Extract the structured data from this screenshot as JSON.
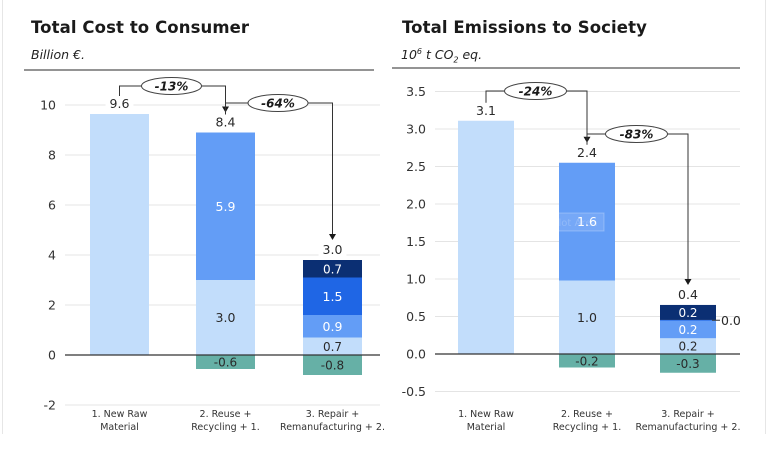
{
  "colors": {
    "raw_material": "#C2DDFB",
    "reuse_recycling": "#639DF6",
    "repair": "#1F66E5",
    "remanufacturing": "#0B2F73",
    "savings": "#66B0A6",
    "grid": "#e4e4e4",
    "axis": "#333333"
  },
  "chart_data": [
    {
      "type": "bar",
      "stacked": true,
      "waterfall_annotations": true,
      "title": "Total Cost to Consumer",
      "subtitle": "Billion €.",
      "xlabel": "",
      "ylabel": "Billion €.",
      "ylim": [
        -2,
        10
      ],
      "yticks": [
        -2,
        0,
        2,
        4,
        6,
        8,
        10
      ],
      "ytick_labels": [
        "-2",
        "0",
        "2",
        "4",
        "6",
        "8",
        "10"
      ],
      "grid": true,
      "categories": [
        "1. New Raw Material",
        "2. Reuse + Recycling + 1.",
        "3. Repair + Remanufacturing + 2."
      ],
      "category_lines": [
        [
          "1. New Raw",
          "Material"
        ],
        [
          "2. Reuse +",
          "Recycling + 1."
        ],
        [
          "3. Repair +",
          "Remanufacturing + 2."
        ]
      ],
      "segments": [
        [
          {
            "series": "raw_material",
            "value": 9.64,
            "label": ""
          }
        ],
        [
          {
            "series": "raw_material",
            "value": 3.0,
            "label": "3.0"
          },
          {
            "series": "reuse_recycling",
            "value": 5.9,
            "label": "5.9"
          },
          {
            "series": "savings",
            "value": -0.56,
            "label": "-0.6"
          }
        ],
        [
          {
            "series": "raw_material",
            "value": 0.7,
            "label": "0.7"
          },
          {
            "series": "reuse_recycling",
            "value": 0.9,
            "label": "0.9"
          },
          {
            "series": "repair",
            "value": 1.5,
            "label": "1.5"
          },
          {
            "series": "remanufacturing",
            "value": 0.7,
            "label": "0.7"
          },
          {
            "series": "savings",
            "value": -0.8,
            "label": "-0.8"
          }
        ]
      ],
      "totals": [
        {
          "value": 9.6,
          "label": "9.6"
        },
        {
          "value": 8.4,
          "label": "8.4"
        },
        {
          "value": 3.0,
          "label": "3.0"
        }
      ],
      "changes": [
        {
          "from": 0,
          "to": 1,
          "label": "-13%"
        },
        {
          "from": 1,
          "to": 2,
          "label": "-64%"
        }
      ],
      "side_labels": []
    },
    {
      "type": "bar",
      "stacked": true,
      "waterfall_annotations": true,
      "title": "Total Emissions to Society",
      "subtitle_parts": {
        "base": "10",
        "sup": "6",
        "mid": " t CO",
        "sub": "2",
        "end": " eq."
      },
      "xlabel": "",
      "ylabel": "10^6 t CO2 eq.",
      "ylim": [
        -0.5,
        3.5
      ],
      "yticks": [
        -0.5,
        0.0,
        0.5,
        1.0,
        1.5,
        2.0,
        2.5,
        3.0,
        3.5
      ],
      "ytick_labels": [
        "-0.5",
        "0.0",
        "0.5",
        "1.0",
        "1.5",
        "2.0",
        "2.5",
        "3.0",
        "3.5"
      ],
      "grid": true,
      "categories": [
        "1. New Raw Material",
        "2. Reuse + Recycling + 1.",
        "3. Repair + Remanufacturing + 2."
      ],
      "category_lines": [
        [
          "1. New Raw",
          "Material"
        ],
        [
          "2. Reuse +",
          "Recycling + 1."
        ],
        [
          "3. Repair +",
          "Remanufacturing + 2."
        ]
      ],
      "segments": [
        [
          {
            "series": "raw_material",
            "value": 3.11,
            "label": ""
          }
        ],
        [
          {
            "series": "raw_material",
            "value": 0.98,
            "label": "1.0"
          },
          {
            "series": "reuse_recycling",
            "value": 1.57,
            "label": "1.6"
          },
          {
            "series": "savings",
            "value": -0.18,
            "label": "-0.2"
          }
        ],
        [
          {
            "series": "raw_material",
            "value": 0.21,
            "label": "0.2"
          },
          {
            "series": "reuse_recycling",
            "value": 0.24,
            "label": "0.2"
          },
          {
            "series": "repair",
            "value": 0.004,
            "label": ""
          },
          {
            "series": "remanufacturing",
            "value": 0.2,
            "label": "0.2"
          },
          {
            "series": "savings",
            "value": -0.25,
            "label": "-0.3"
          }
        ]
      ],
      "totals": [
        {
          "value": 3.1,
          "label": "3.1"
        },
        {
          "value": 2.4,
          "label": "2.4"
        },
        {
          "value": 0.4,
          "label": "0.4"
        }
      ],
      "changes": [
        {
          "from": 0,
          "to": 1,
          "label": "-24%"
        },
        {
          "from": 1,
          "to": 2,
          "label": "-83%"
        }
      ],
      "side_labels": [
        {
          "category": 2,
          "segment": 2,
          "label": "0.0"
        }
      ]
    }
  ],
  "overlay": {
    "plot_area_tooltip": "Plot Area"
  }
}
